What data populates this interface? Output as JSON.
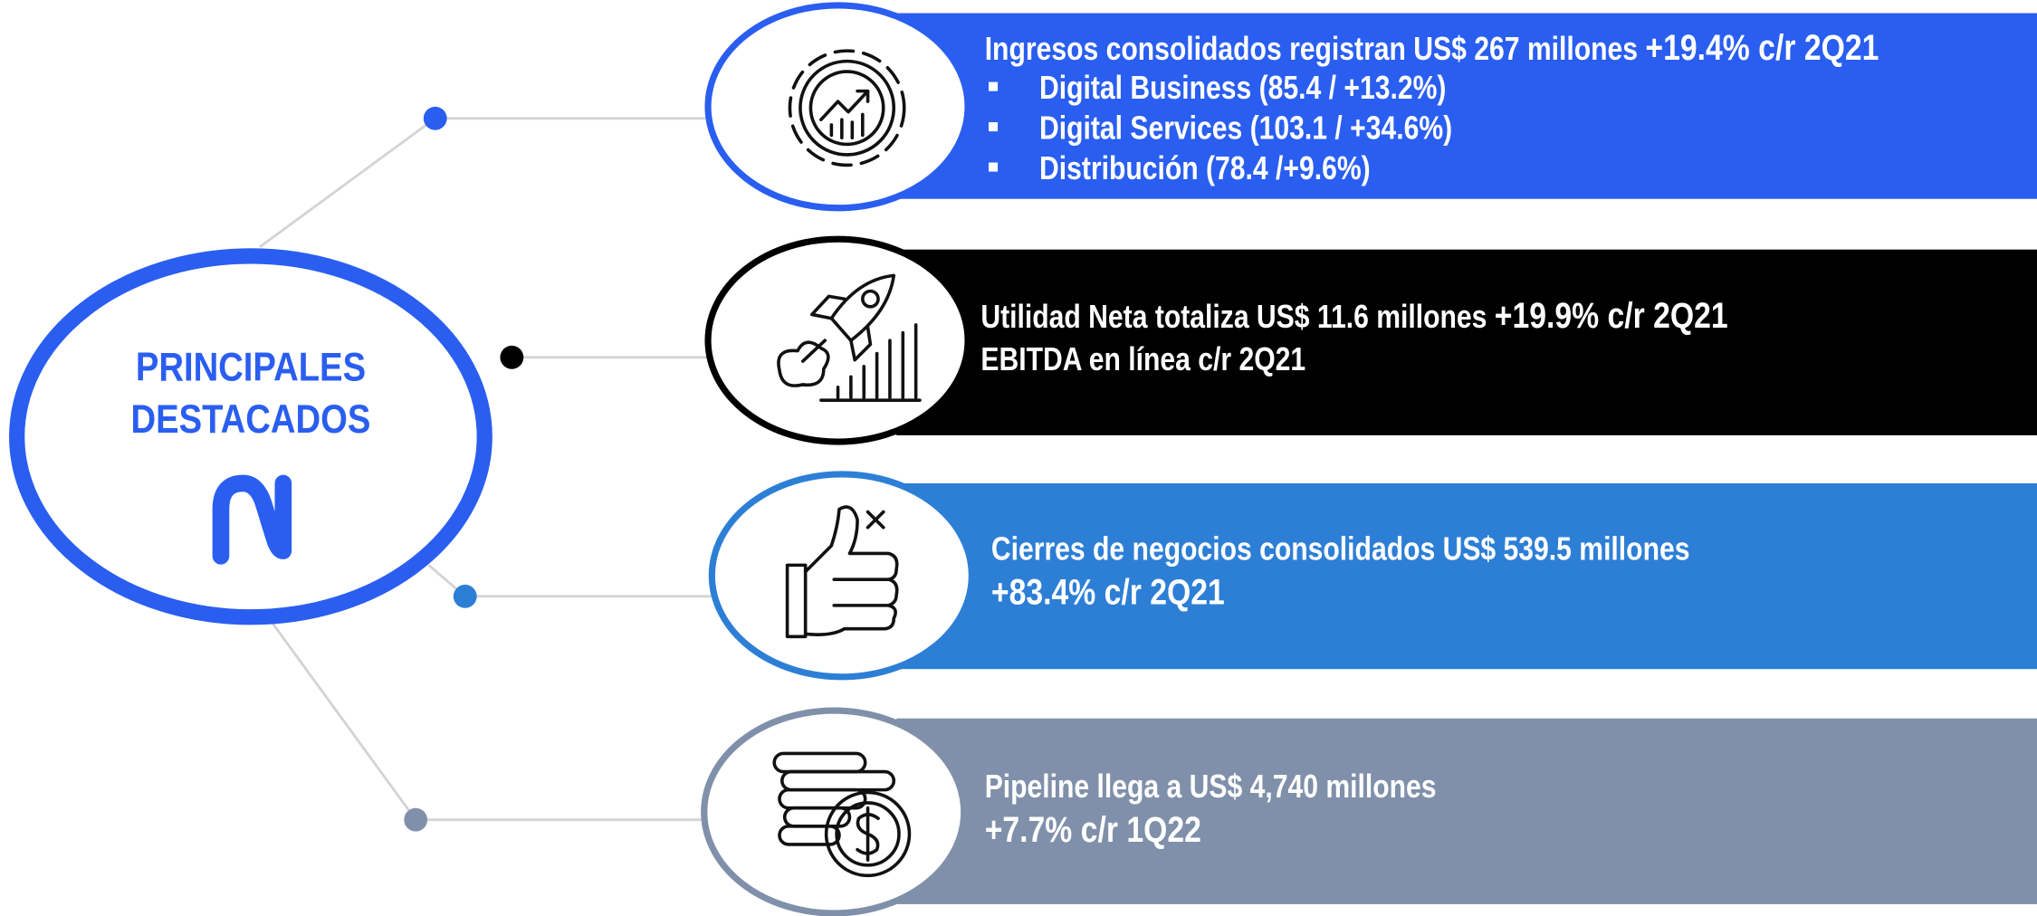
{
  "center": {
    "lines": [
      "PRINCIPALES",
      "DESTACADOS"
    ]
  },
  "items": [
    {
      "lines": [
        [
          "Ingresos consolidados registran US$ 267 millones ",
          "+19.4% c/r 2Q21"
        ]
      ],
      "bullets": [
        "Digital Business (85.4 / +13.2%)",
        "Digital Services (103.1 / +34.6%)",
        "Distribución (78.4 /+9.6%)"
      ]
    },
    {
      "lines": [
        [
          "Utilidad Neta totaliza US$ 11.6 millones ",
          "+19.9% c/r 2Q21"
        ],
        [
          "EBITDA en línea c/r 2Q21"
        ]
      ]
    },
    {
      "lines": [
        [
          "Cierres de negocios consolidados US$ 539.5 millones"
        ],
        [
          "+83.4% c/r 2Q21"
        ]
      ]
    },
    {
      "lines": [
        [
          "Pipeline llega a US$ 4,740 millones"
        ],
        [
          "+7.7% c/r 1Q22"
        ]
      ]
    }
  ]
}
